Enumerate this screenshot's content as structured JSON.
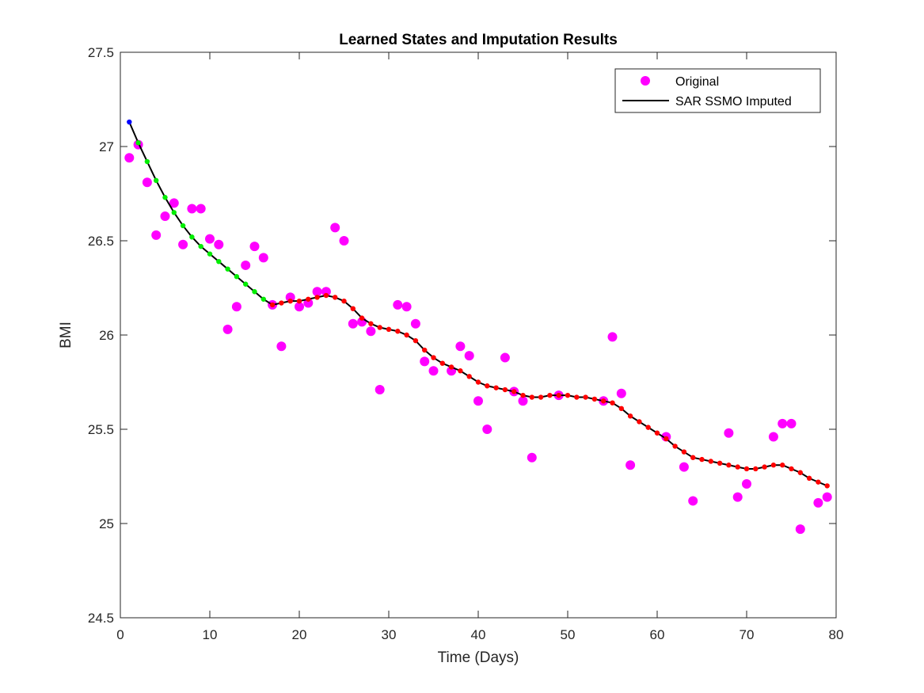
{
  "chart_data": {
    "type": "scatter",
    "title": "Learned States and Imputation Results",
    "xlabel": "Time (Days)",
    "ylabel": "BMI",
    "xlim": [
      0,
      80
    ],
    "ylim": [
      24.5,
      27.5
    ],
    "x_ticks": [
      "0",
      "10",
      "20",
      "30",
      "40",
      "50",
      "60",
      "70",
      "80"
    ],
    "y_ticks": [
      "24.5",
      "25",
      "25.5",
      "26",
      "26.5",
      "27",
      "27.5"
    ],
    "grid": false,
    "legend_placement": "top-right",
    "colors": {
      "original": "#ff00ff",
      "imputed_line": "#000000",
      "state_1": "#0000ff",
      "state_2": "#00ee00",
      "state_3": "#ff0000"
    },
    "series": [
      {
        "name": "Original",
        "marker": "circle",
        "points": [
          [
            1,
            26.94
          ],
          [
            2,
            27.01
          ],
          [
            3,
            26.81
          ],
          [
            4,
            26.53
          ],
          [
            5,
            26.63
          ],
          [
            6,
            26.7
          ],
          [
            7,
            26.48
          ],
          [
            8,
            26.67
          ],
          [
            9,
            26.67
          ],
          [
            10,
            26.51
          ],
          [
            11,
            26.48
          ],
          [
            12,
            26.03
          ],
          [
            13,
            26.15
          ],
          [
            14,
            26.37
          ],
          [
            15,
            26.47
          ],
          [
            16,
            26.41
          ],
          [
            17,
            26.16
          ],
          [
            18,
            25.94
          ],
          [
            19,
            26.2
          ],
          [
            20,
            26.15
          ],
          [
            21,
            26.17
          ],
          [
            22,
            26.23
          ],
          [
            23,
            26.23
          ],
          [
            24,
            26.57
          ],
          [
            25,
            26.5
          ],
          [
            26,
            26.06
          ],
          [
            27,
            26.07
          ],
          [
            28,
            26.02
          ],
          [
            29,
            25.71
          ],
          [
            31,
            26.16
          ],
          [
            32,
            26.15
          ],
          [
            33,
            26.06
          ],
          [
            34,
            25.86
          ],
          [
            35,
            25.81
          ],
          [
            37,
            25.81
          ],
          [
            38,
            25.94
          ],
          [
            39,
            25.89
          ],
          [
            40,
            25.65
          ],
          [
            41,
            25.5
          ],
          [
            43,
            25.88
          ],
          [
            44,
            25.7
          ],
          [
            45,
            25.65
          ],
          [
            46,
            25.35
          ],
          [
            49,
            25.68
          ],
          [
            54,
            25.65
          ],
          [
            55,
            25.99
          ],
          [
            56,
            25.69
          ],
          [
            57,
            25.31
          ],
          [
            61,
            25.46
          ],
          [
            63,
            25.3
          ],
          [
            64,
            25.12
          ],
          [
            68,
            25.48
          ],
          [
            69,
            25.14
          ],
          [
            70,
            25.21
          ],
          [
            73,
            25.46
          ],
          [
            74,
            25.53
          ],
          [
            75,
            25.53
          ],
          [
            76,
            24.97
          ],
          [
            78,
            25.11
          ],
          [
            79,
            25.14
          ]
        ]
      },
      {
        "name": "SAR SSMO Imputed",
        "marker": "line",
        "points": [
          [
            1,
            27.13
          ],
          [
            2,
            27.02
          ],
          [
            3,
            26.92
          ],
          [
            4,
            26.82
          ],
          [
            5,
            26.73
          ],
          [
            6,
            26.65
          ],
          [
            7,
            26.58
          ],
          [
            8,
            26.52
          ],
          [
            9,
            26.47
          ],
          [
            10,
            26.43
          ],
          [
            11,
            26.39
          ],
          [
            12,
            26.35
          ],
          [
            13,
            26.31
          ],
          [
            14,
            26.27
          ],
          [
            15,
            26.23
          ],
          [
            16,
            26.19
          ],
          [
            17,
            26.16
          ],
          [
            18,
            26.17
          ],
          [
            19,
            26.18
          ],
          [
            20,
            26.18
          ],
          [
            21,
            26.19
          ],
          [
            22,
            26.2
          ],
          [
            23,
            26.21
          ],
          [
            24,
            26.2
          ],
          [
            25,
            26.18
          ],
          [
            26,
            26.14
          ],
          [
            27,
            26.09
          ],
          [
            28,
            26.06
          ],
          [
            29,
            26.04
          ],
          [
            30,
            26.03
          ],
          [
            31,
            26.02
          ],
          [
            32,
            26.0
          ],
          [
            33,
            25.97
          ],
          [
            34,
            25.92
          ],
          [
            35,
            25.88
          ],
          [
            36,
            25.85
          ],
          [
            37,
            25.83
          ],
          [
            38,
            25.81
          ],
          [
            39,
            25.78
          ],
          [
            40,
            25.75
          ],
          [
            41,
            25.73
          ],
          [
            42,
            25.72
          ],
          [
            43,
            25.71
          ],
          [
            44,
            25.7
          ],
          [
            45,
            25.68
          ],
          [
            46,
            25.67
          ],
          [
            47,
            25.67
          ],
          [
            48,
            25.68
          ],
          [
            49,
            25.68
          ],
          [
            50,
            25.68
          ],
          [
            51,
            25.67
          ],
          [
            52,
            25.67
          ],
          [
            53,
            25.66
          ],
          [
            54,
            25.65
          ],
          [
            55,
            25.64
          ],
          [
            56,
            25.61
          ],
          [
            57,
            25.57
          ],
          [
            58,
            25.54
          ],
          [
            59,
            25.51
          ],
          [
            60,
            25.48
          ],
          [
            61,
            25.45
          ],
          [
            62,
            25.41
          ],
          [
            63,
            25.38
          ],
          [
            64,
            25.35
          ],
          [
            65,
            25.34
          ],
          [
            66,
            25.33
          ],
          [
            67,
            25.32
          ],
          [
            68,
            25.31
          ],
          [
            69,
            25.3
          ],
          [
            70,
            25.29
          ],
          [
            71,
            25.29
          ],
          [
            72,
            25.3
          ],
          [
            73,
            25.31
          ],
          [
            74,
            25.31
          ],
          [
            75,
            25.29
          ],
          [
            76,
            25.27
          ],
          [
            77,
            25.24
          ],
          [
            78,
            25.22
          ],
          [
            79,
            25.2
          ]
        ],
        "state_segments": [
          {
            "color": "#0000ff",
            "x_from": 1,
            "x_to": 1
          },
          {
            "color": "#00ee00",
            "x_from": 2,
            "x_to": 16
          },
          {
            "color": "#ff0000",
            "x_from": 17,
            "x_to": 79
          }
        ]
      }
    ]
  }
}
